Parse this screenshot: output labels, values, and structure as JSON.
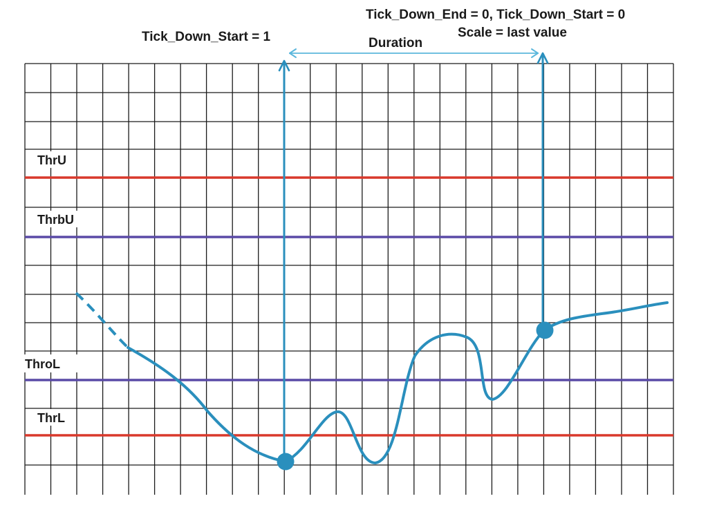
{
  "annotations": {
    "start": "Tick_Down_Start = 1",
    "duration": "Duration",
    "end_line1": "Tick_Down_End = 0, Tick_Down_Start = 0",
    "end_line2": "Scale = last value"
  },
  "thresholds": [
    {
      "id": "thru",
      "label": "ThrU",
      "color": "#d9382b"
    },
    {
      "id": "thrbu",
      "label": "ThrbU",
      "color": "#5a4aa6"
    },
    {
      "id": "throl",
      "label": "ThroL",
      "color": "#5a4aa6"
    },
    {
      "id": "thrl",
      "label": "ThrL",
      "color": "#d9382b"
    }
  ],
  "colors": {
    "signal": "#2a8fbd",
    "duration_arrow": "#5bb7dc",
    "grid": "#1a1a1a"
  }
}
